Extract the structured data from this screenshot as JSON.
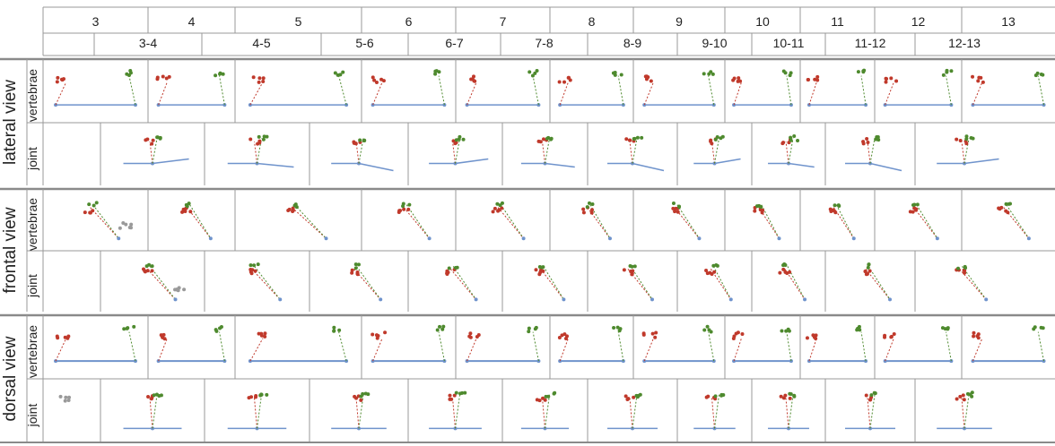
{
  "figure": {
    "cut_header_text": "vertebra",
    "vertebra_numbers": [
      "3",
      "4",
      "5",
      "6",
      "7",
      "8",
      "9",
      "10",
      "11",
      "12",
      "13"
    ],
    "joint_pairs": [
      "3-4",
      "4-5",
      "5-6",
      "6-7",
      "7-8",
      "8-9",
      "9-10",
      "10-11",
      "11-12",
      "12-13"
    ],
    "views": [
      {
        "key": "lateral",
        "label": "lateral view",
        "rows": [
          {
            "key": "vertebrae",
            "label": "vertebrae"
          },
          {
            "key": "joint",
            "label": "joint"
          }
        ]
      },
      {
        "key": "frontal",
        "label": "frontal view",
        "rows": [
          {
            "key": "vertebrae",
            "label": "vertebrae"
          },
          {
            "key": "joint",
            "label": "joint"
          }
        ]
      },
      {
        "key": "dorsal",
        "label": "dorsal view",
        "rows": [
          {
            "key": "vertebrae",
            "label": "vertebrae"
          },
          {
            "key": "joint",
            "label": "joint"
          }
        ]
      }
    ],
    "colors": {
      "red_markers": "#c0392b",
      "green_markers": "#4e8a2e",
      "grey_markers": "#9a9a9a",
      "axis_line": "#6f93cc",
      "grid": "#999999",
      "view_separator": "#8a8a8a"
    }
  }
}
